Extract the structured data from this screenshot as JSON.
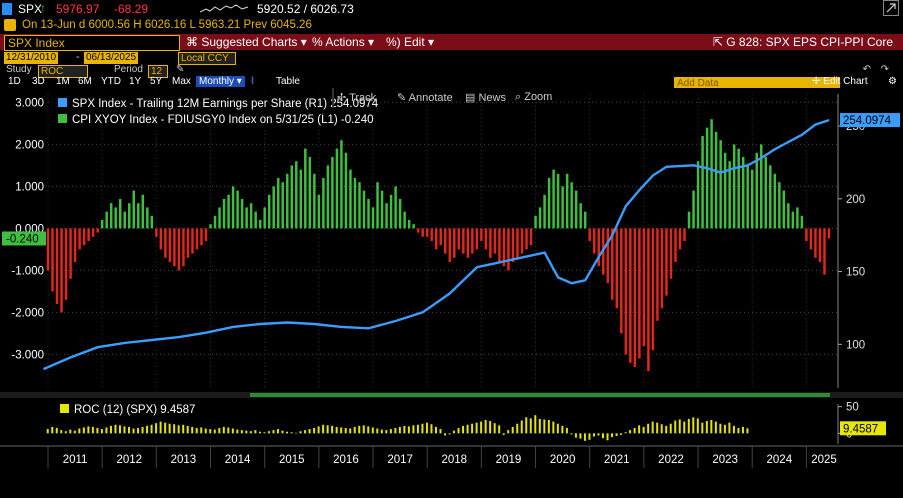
{
  "quote": {
    "ticker": "SPX",
    "arrow": "↑",
    "price": "5976.97",
    "change": "-68.29",
    "range": "5920.52 / 6026.73"
  },
  "ohlc": {
    "text": "On 13-Jun d 6000.56 H 6026.16 L 5963.21 Prev 6045.26"
  },
  "menu": {
    "security": "SPX Index",
    "suggested": "Suggested Charts",
    "actions": "Actions",
    "edit": "Edit",
    "chart_title": "G 828: SPX EPS CPI-PPI Core"
  },
  "dates": {
    "start": "12/31/2010",
    "end": "06/13/2025",
    "currency": "Local CCY"
  },
  "study": {
    "label": "Study",
    "study_value": "ROC",
    "period_label": "Period",
    "period_value": "12"
  },
  "tabs": {
    "periods": [
      "1D",
      "3D",
      "1M",
      "6M",
      "YTD",
      "1Y",
      "5Y",
      "Max"
    ],
    "frequency": "Monthly",
    "table": "Table",
    "add_data": "Add Data",
    "edit_chart": "Edit Chart"
  },
  "toolbar": {
    "track": "Track",
    "annotate": "Annotate",
    "news": "News",
    "zoom": "Zoom"
  },
  "colors": {
    "eps_line": "#3d9cff",
    "cpi_pos": "#3fbf3f",
    "cpi_neg": "#e0281e",
    "roc": "#e6e600",
    "menu_bar": "#7a0d18"
  },
  "chart_data": [
    {
      "type": "line",
      "title": "",
      "x_range": [
        "2011-01",
        "2025-06"
      ],
      "x_tick_labels": [
        "2011",
        "2012",
        "2013",
        "2014",
        "2015",
        "2016",
        "2017",
        "2018",
        "2019",
        "2020",
        "2021",
        "2022",
        "2023",
        "2024",
        "2025"
      ],
      "left_axis": {
        "ticks": [
          "3.000",
          "2.000",
          "1.000",
          "0.000",
          "-1.000",
          "-2.000",
          "-3.000"
        ],
        "ylim": [
          -3.8,
          3.2
        ]
      },
      "right_axis": {
        "ticks": [
          "250",
          "200",
          "150",
          "100"
        ],
        "ylim": [
          70,
          272
        ]
      },
      "series": [
        {
          "name": "SPX Index - Trailing 12M Earnings per Share (R1)",
          "last_label": "254.0974",
          "legend_value": "254.0974",
          "axis": "right",
          "type": "line",
          "points": [
            [
              "2010-12",
              83
            ],
            [
              "2011-06",
              91
            ],
            [
              "2011-12",
              98
            ],
            [
              "2012-06",
              101
            ],
            [
              "2012-12",
              103
            ],
            [
              "2013-06",
              105
            ],
            [
              "2013-12",
              108
            ],
            [
              "2014-06",
              112
            ],
            [
              "2014-12",
              114
            ],
            [
              "2015-06",
              115
            ],
            [
              "2015-12",
              114
            ],
            [
              "2016-06",
              112
            ],
            [
              "2016-12",
              111
            ],
            [
              "2017-06",
              116
            ],
            [
              "2017-12",
              122
            ],
            [
              "2018-06",
              135
            ],
            [
              "2018-12",
              153
            ],
            [
              "2019-06",
              157
            ],
            [
              "2019-12",
              161
            ],
            [
              "2020-03",
              163
            ],
            [
              "2020-06",
              146
            ],
            [
              "2020-09",
              142
            ],
            [
              "2020-12",
              144
            ],
            [
              "2021-03",
              160
            ],
            [
              "2021-06",
              175
            ],
            [
              "2021-09",
              195
            ],
            [
              "2021-12",
              206
            ],
            [
              "2022-03",
              216
            ],
            [
              "2022-06",
              222
            ],
            [
              "2022-12",
              223
            ],
            [
              "2023-03",
              221
            ],
            [
              "2023-06",
              218
            ],
            [
              "2023-09",
              221
            ],
            [
              "2023-12",
              223
            ],
            [
              "2024-03",
              228
            ],
            [
              "2024-06",
              234
            ],
            [
              "2024-09",
              239
            ],
            [
              "2024-12",
              244
            ],
            [
              "2025-03",
              251
            ],
            [
              "2025-06",
              254.1
            ]
          ]
        },
        {
          "name": "CPI XYOY Index - FDIUSGY0 Index on 5/31/25 (L1)",
          "last_label": "-0.240",
          "legend_value": "-0.240",
          "axis": "left",
          "type": "bar",
          "values": [
            -1.0,
            -1.5,
            -1.8,
            -2.0,
            -1.7,
            -1.2,
            -0.8,
            -0.5,
            -0.4,
            -0.3,
            -0.2,
            -0.1,
            0.2,
            0.4,
            0.6,
            0.5,
            0.7,
            0.4,
            0.6,
            0.9,
            0.6,
            0.8,
            0.5,
            0.3,
            -0.2,
            -0.5,
            -0.7,
            -0.8,
            -0.9,
            -1.0,
            -0.9,
            -0.7,
            -0.6,
            -0.5,
            -0.4,
            -0.3,
            0.1,
            0.3,
            0.5,
            0.7,
            0.8,
            1.0,
            0.9,
            0.7,
            0.5,
            0.6,
            0.4,
            0.2,
            0.5,
            0.8,
            1.0,
            1.2,
            1.1,
            1.3,
            1.5,
            1.6,
            1.4,
            1.9,
            1.7,
            1.3,
            0.8,
            1.2,
            1.5,
            1.7,
            1.9,
            2.1,
            1.8,
            1.4,
            1.2,
            1.1,
            0.9,
            0.7,
            0.5,
            1.1,
            0.9,
            0.6,
            0.8,
            1.0,
            0.7,
            0.4,
            0.2,
            0.1,
            -0.1,
            -0.2,
            -0.2,
            -0.3,
            -0.5,
            -0.4,
            -0.6,
            -0.8,
            -0.7,
            -0.5,
            -0.6,
            -0.7,
            -0.6,
            -0.5,
            -0.3,
            -0.5,
            -0.7,
            -0.6,
            -0.8,
            -0.9,
            -1.0,
            -0.8,
            -0.7,
            -0.6,
            -0.5,
            -0.4,
            0.3,
            0.5,
            0.8,
            1.2,
            1.4,
            1.3,
            1.0,
            1.3,
            1.1,
            0.9,
            0.6,
            0.4,
            -0.3,
            -0.6,
            -0.9,
            -1.1,
            -1.3,
            -1.7,
            -1.9,
            -2.5,
            -3.0,
            -3.2,
            -3.3,
            -3.1,
            -2.8,
            -3.4,
            -2.9,
            -2.2,
            -1.9,
            -1.6,
            -1.2,
            -0.8,
            -0.5,
            -0.3,
            0.4,
            0.9,
            1.6,
            2.2,
            2.4,
            2.6,
            2.3,
            2.1,
            1.8,
            1.6,
            2.0,
            1.9,
            1.7,
            1.5,
            1.4,
            1.8,
            2.0,
            1.7,
            1.5,
            1.3,
            1.1,
            0.9,
            0.6,
            0.4,
            0.5,
            0.3,
            -0.3,
            -0.5,
            -0.7,
            -0.8,
            -1.1,
            -0.24
          ]
        }
      ]
    },
    {
      "type": "bar",
      "title": "",
      "series": [
        {
          "name": "ROC (12) (SPX)",
          "legend_value": "9.4587",
          "last_label": "9.4587",
          "axis": "right",
          "values": [
            8,
            12,
            10,
            6,
            4,
            7,
            5,
            9,
            11,
            13,
            12,
            10,
            8,
            11,
            14,
            16,
            15,
            13,
            12,
            9,
            10,
            12,
            14,
            16,
            19,
            22,
            20,
            18,
            17,
            15,
            16,
            14,
            12,
            10,
            11,
            9,
            8,
            7,
            10,
            12,
            11,
            9,
            7,
            6,
            5,
            4,
            6,
            3,
            2,
            4,
            6,
            8,
            5,
            3,
            2,
            1,
            4,
            6,
            8,
            10,
            13,
            16,
            15,
            14,
            12,
            11,
            10,
            9,
            12,
            14,
            15,
            13,
            11,
            9,
            7,
            6,
            8,
            10,
            12,
            14,
            13,
            15,
            16,
            18,
            20,
            17,
            12,
            8,
            -4,
            -2,
            5,
            10,
            14,
            16,
            18,
            20,
            22,
            25,
            23,
            19,
            15,
            -3,
            6,
            12,
            18,
            24,
            30,
            28,
            34,
            27,
            26,
            25,
            22,
            18,
            14,
            10,
            -2,
            -8,
            -10,
            -14,
            -12,
            -6,
            -4,
            -9,
            -13,
            -7,
            -5,
            -3,
            2,
            6,
            10,
            15,
            12,
            18,
            22,
            20,
            17,
            14,
            18,
            24,
            26,
            22,
            27,
            30,
            28,
            20,
            23,
            25,
            22,
            18,
            16,
            20,
            14,
            10,
            12,
            9.4587
          ],
          "right_ticks": [
            "50",
            "0"
          ],
          "ylim": [
            -20,
            55
          ]
        }
      ],
      "x_tick_labels": [
        "2011",
        "2012",
        "2013",
        "2014",
        "2015",
        "2016",
        "2017",
        "2018",
        "2019",
        "2020",
        "2021",
        "2022",
        "2023",
        "2024",
        "2025"
      ]
    }
  ]
}
